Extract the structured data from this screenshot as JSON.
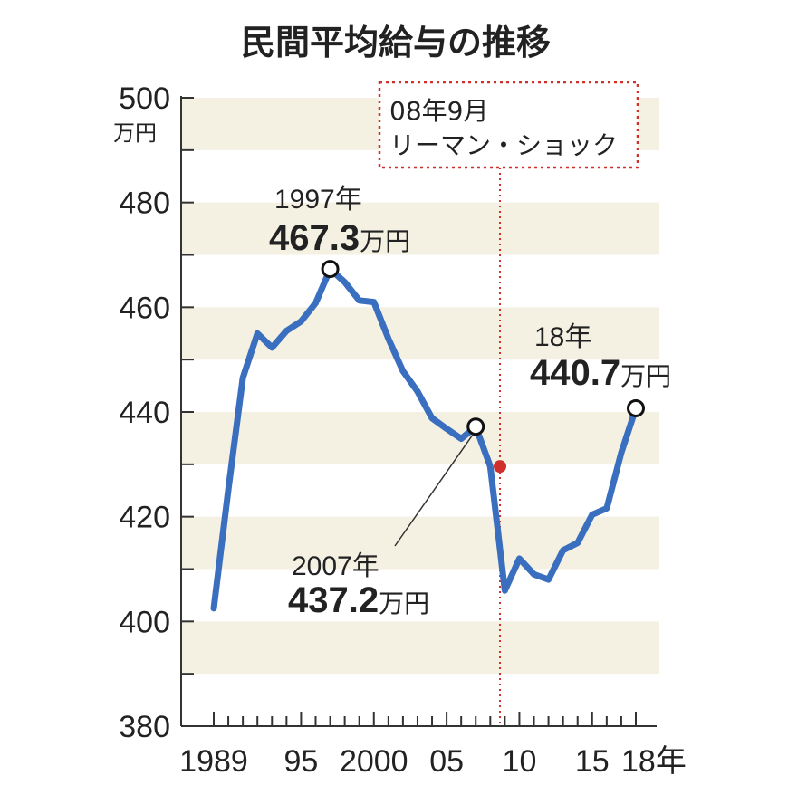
{
  "chart_data": {
    "type": "line",
    "title": "民間平均給与の推移",
    "y_unit": "万円",
    "ylim": [
      380,
      500
    ],
    "y_ticks": [
      "500",
      "480",
      "460",
      "440",
      "420",
      "400",
      "380"
    ],
    "x_tick_labels": [
      {
        "x": 1989,
        "label": "1989"
      },
      {
        "x": 1995,
        "label": "95"
      },
      {
        "x": 2000,
        "label": "2000"
      },
      {
        "x": 2005,
        "label": "05"
      },
      {
        "x": 2010,
        "label": "10"
      },
      {
        "x": 2015,
        "label": "15"
      },
      {
        "x": 2018,
        "label": "18年"
      }
    ],
    "xlim": [
      1989,
      2018
    ],
    "grid": "horizontal bands",
    "colors": {
      "line": "#3a6fbf",
      "band": "#f4f1e3",
      "event": "#d0302b",
      "marker": "#ffffff"
    },
    "series": [
      {
        "x": [
          1989,
          1990,
          1991,
          1992,
          1993,
          1994,
          1995,
          1996,
          1997,
          1998,
          1999,
          2000,
          2001,
          2002,
          2003,
          2004,
          2005,
          2006,
          2007,
          2008,
          2009,
          2010,
          2011,
          2012,
          2013,
          2014,
          2015,
          2016,
          2017,
          2018
        ],
        "y": [
          402.5,
          425.2,
          446.5,
          455.0,
          452.3,
          455.5,
          457.3,
          460.8,
          467.3,
          464.8,
          461.3,
          461.0,
          454.0,
          447.8,
          443.9,
          438.8,
          436.8,
          434.9,
          437.2,
          429.6,
          405.9,
          412.0,
          409.0,
          408.0,
          413.6,
          415.0,
          420.4,
          421.6,
          432.2,
          440.7
        ]
      }
    ],
    "annotations": {
      "peak_1997": {
        "year_label": "1997年",
        "value": "467.3",
        "unit": "万円"
      },
      "point_2007": {
        "year_label": "2007年",
        "value": "437.2",
        "unit": "万円"
      },
      "point_2018": {
        "year_label": "18年",
        "value": "440.7",
        "unit": "万円"
      },
      "event": {
        "line1": "08年9月",
        "line2": "リーマン・ショック"
      }
    }
  }
}
